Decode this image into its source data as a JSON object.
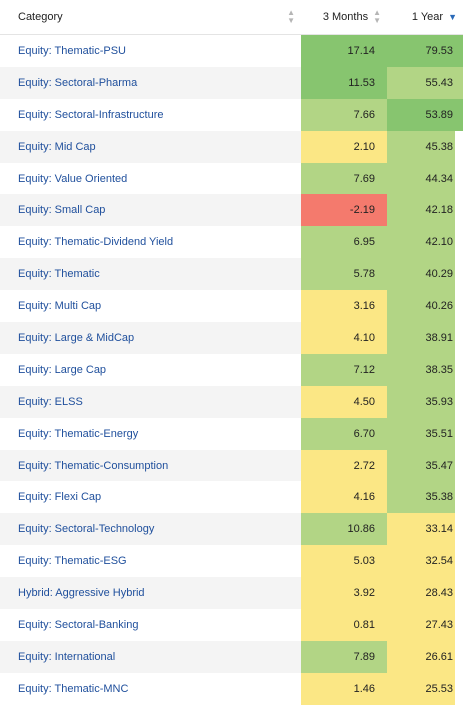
{
  "headers": {
    "category": "Category",
    "m3": "3 Months",
    "y1": "1 Year"
  },
  "colors": {
    "green_dark": "#87c56f",
    "green": "#b2d585",
    "yellow": "#fbe785",
    "red": "#f47a6d",
    "link": "#1f4f9c",
    "sort_active": "#2a6ab8"
  },
  "rows": [
    {
      "category": "Equity: Thematic-PSU",
      "m3": "17.14",
      "y1": "79.53",
      "m3_color": "green_dark",
      "y1_color": "green_dark",
      "edge": "green_dark"
    },
    {
      "category": "Equity: Sectoral-Pharma",
      "m3": "11.53",
      "y1": "55.43",
      "m3_color": "green_dark",
      "y1_color": "green",
      "edge": "green"
    },
    {
      "category": "Equity: Sectoral-Infrastructure",
      "m3": "7.66",
      "y1": "53.89",
      "m3_color": "green",
      "y1_color": "green_dark",
      "edge": "green_dark"
    },
    {
      "category": "Equity: Mid Cap",
      "m3": "2.10",
      "y1": "45.38",
      "m3_color": "yellow",
      "y1_color": "green",
      "edge": "white"
    },
    {
      "category": "Equity: Value Oriented",
      "m3": "7.69",
      "y1": "44.34",
      "m3_color": "green",
      "y1_color": "green",
      "edge": "white"
    },
    {
      "category": "Equity: Small Cap",
      "m3": "-2.19",
      "y1": "42.18",
      "m3_color": "red",
      "y1_color": "green",
      "edge": "white"
    },
    {
      "category": "Equity: Thematic-Dividend Yield",
      "m3": "6.95",
      "y1": "42.10",
      "m3_color": "green",
      "y1_color": "green",
      "edge": "white"
    },
    {
      "category": "Equity: Thematic",
      "m3": "5.78",
      "y1": "40.29",
      "m3_color": "green",
      "y1_color": "green",
      "edge": "white"
    },
    {
      "category": "Equity: Multi Cap",
      "m3": "3.16",
      "y1": "40.26",
      "m3_color": "yellow",
      "y1_color": "green",
      "edge": "white"
    },
    {
      "category": "Equity: Large & MidCap",
      "m3": "4.10",
      "y1": "38.91",
      "m3_color": "yellow",
      "y1_color": "green",
      "edge": "white"
    },
    {
      "category": "Equity: Large Cap",
      "m3": "7.12",
      "y1": "38.35",
      "m3_color": "green",
      "y1_color": "green",
      "edge": "white"
    },
    {
      "category": "Equity: ELSS",
      "m3": "4.50",
      "y1": "35.93",
      "m3_color": "yellow",
      "y1_color": "green",
      "edge": "white"
    },
    {
      "category": "Equity: Thematic-Energy",
      "m3": "6.70",
      "y1": "35.51",
      "m3_color": "green",
      "y1_color": "green",
      "edge": "white"
    },
    {
      "category": "Equity: Thematic-Consumption",
      "m3": "2.72",
      "y1": "35.47",
      "m3_color": "yellow",
      "y1_color": "green",
      "edge": "white"
    },
    {
      "category": "Equity: Flexi Cap",
      "m3": "4.16",
      "y1": "35.38",
      "m3_color": "yellow",
      "y1_color": "green",
      "edge": "white"
    },
    {
      "category": "Equity: Sectoral-Technology",
      "m3": "10.86",
      "y1": "33.14",
      "m3_color": "green",
      "y1_color": "yellow",
      "edge": "white"
    },
    {
      "category": "Equity: Thematic-ESG",
      "m3": "5.03",
      "y1": "32.54",
      "m3_color": "yellow",
      "y1_color": "yellow",
      "edge": "white"
    },
    {
      "category": "Hybrid: Aggressive Hybrid",
      "m3": "3.92",
      "y1": "28.43",
      "m3_color": "yellow",
      "y1_color": "yellow",
      "edge": "white"
    },
    {
      "category": "Equity: Sectoral-Banking",
      "m3": "0.81",
      "y1": "27.43",
      "m3_color": "yellow",
      "y1_color": "yellow",
      "edge": "white"
    },
    {
      "category": "Equity: International",
      "m3": "7.89",
      "y1": "26.61",
      "m3_color": "green",
      "y1_color": "yellow",
      "edge": "white"
    },
    {
      "category": "Equity: Thematic-MNC",
      "m3": "1.46",
      "y1": "25.53",
      "m3_color": "yellow",
      "y1_color": "yellow",
      "edge": "white"
    }
  ]
}
